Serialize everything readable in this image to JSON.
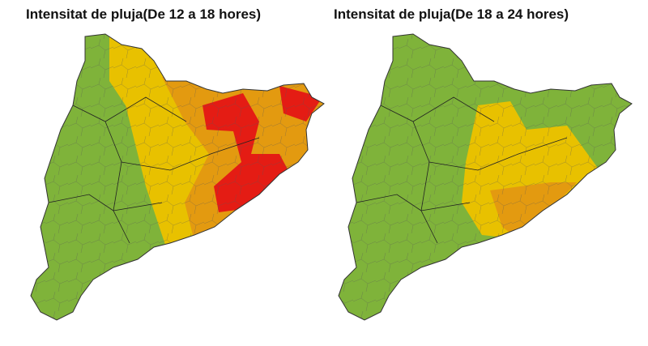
{
  "maps": [
    {
      "title": "Intensitat de pluja(De 12 a 18 hores)"
    },
    {
      "title": "Intensitat de pluja(De 18 a 24 hores)"
    }
  ]
}
